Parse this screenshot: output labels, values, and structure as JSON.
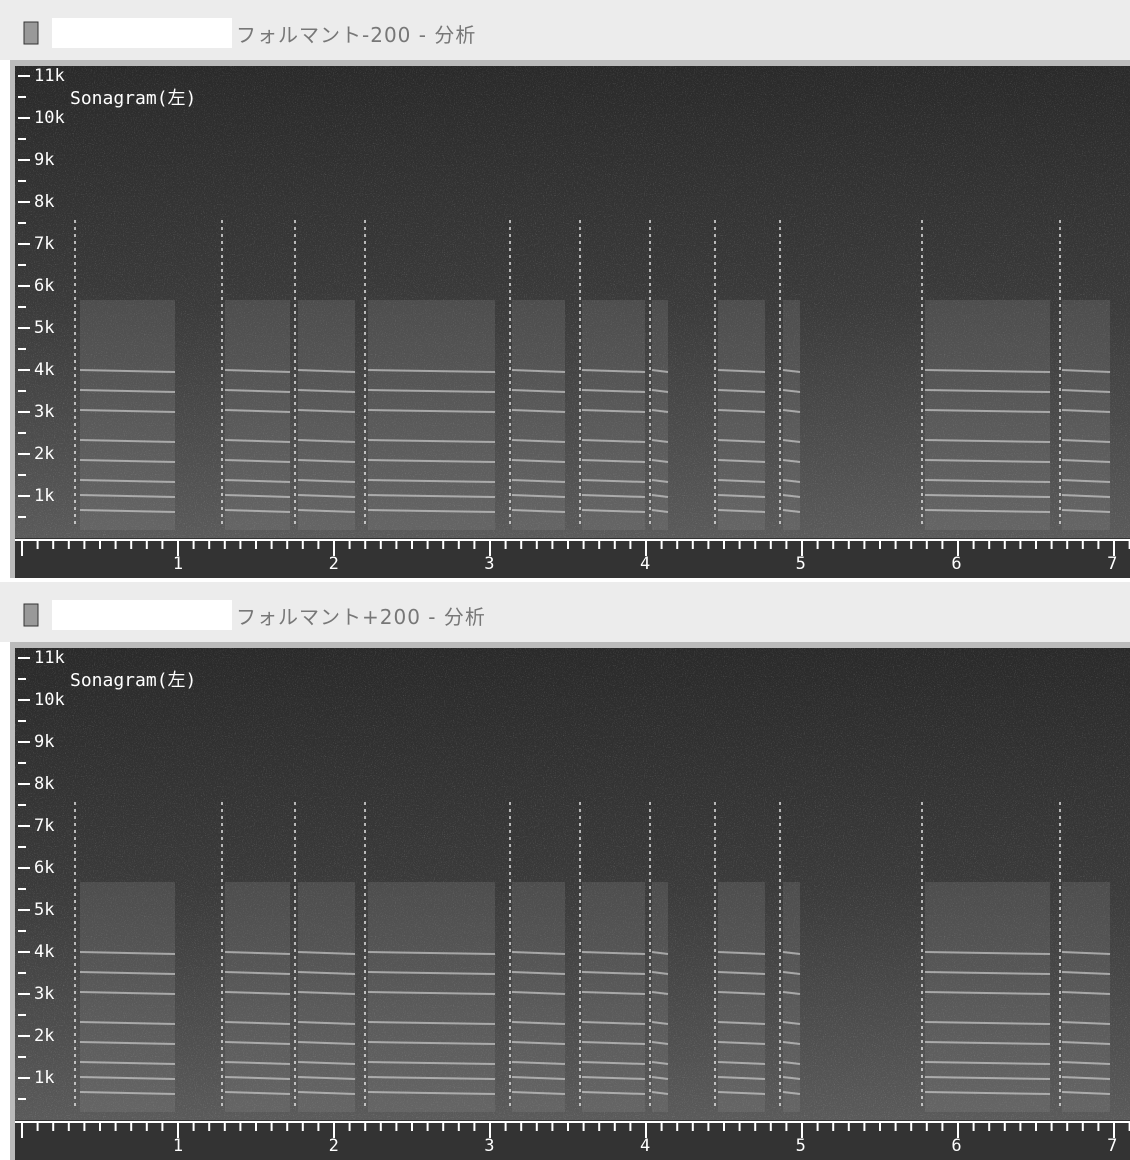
{
  "windows": [
    {
      "title": "フォルマント-200 - 分析",
      "view_label": "Sonagram(左)",
      "y_labels": [
        "11k",
        "10k",
        "9k",
        "8k",
        "7k",
        "6k",
        "5k",
        "4k",
        "3k",
        "2k",
        "1k"
      ],
      "x_labels": [
        1,
        2,
        3,
        4,
        5,
        6,
        7
      ]
    },
    {
      "title": "フォルマント+200 - 分析",
      "view_label": "Sonagram(左)",
      "y_labels": [
        "11k",
        "10k",
        "9k",
        "8k",
        "7k",
        "6k",
        "5k",
        "4k",
        "3k",
        "2k",
        "1k"
      ],
      "x_labels": [
        1,
        2,
        3,
        4,
        5,
        6,
        7
      ]
    }
  ]
}
